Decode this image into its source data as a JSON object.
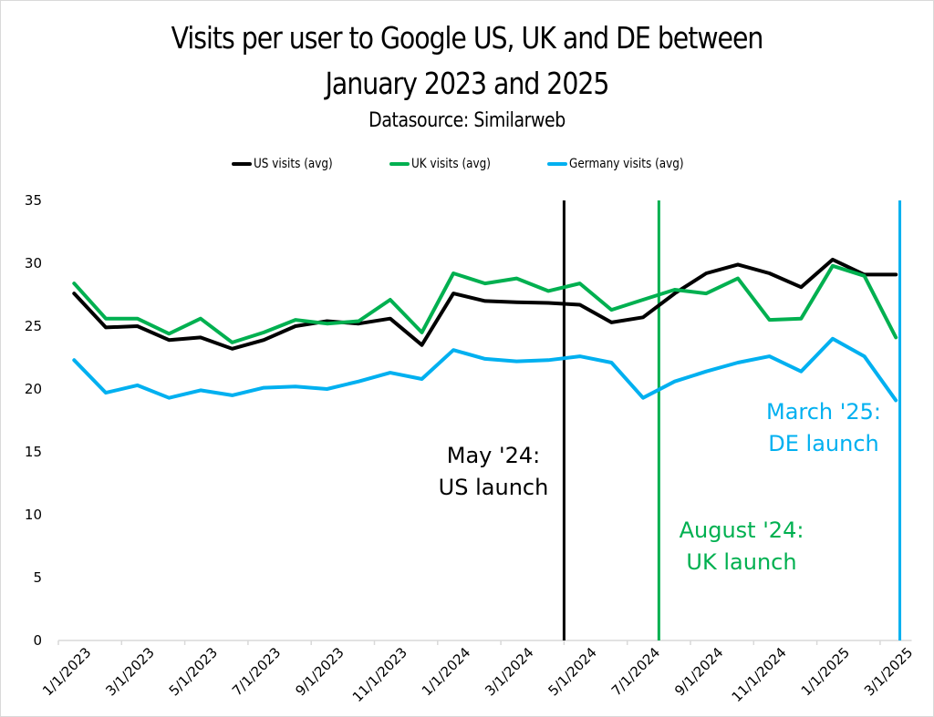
{
  "chart_data": {
    "type": "line",
    "title_lines": [
      "Visits per user to Google US, UK and DE between",
      "January 2023 and 2025"
    ],
    "subtitle": "Datasource: Similarweb",
    "xlabel": "",
    "ylabel": "",
    "ylim": [
      0,
      35
    ],
    "yticks": [
      0,
      5,
      10,
      15,
      20,
      25,
      30,
      35
    ],
    "grid": false,
    "legend_position": "top",
    "x": [
      "1/1/2023",
      "2/1/2023",
      "3/1/2023",
      "4/1/2023",
      "5/1/2023",
      "6/1/2023",
      "7/1/2023",
      "8/1/2023",
      "9/1/2023",
      "10/1/2023",
      "11/1/2023",
      "12/1/2023",
      "1/1/2024",
      "2/1/2024",
      "3/1/2024",
      "4/1/2024",
      "5/1/2024",
      "6/1/2024",
      "7/1/2024",
      "8/1/2024",
      "9/1/2024",
      "10/1/2024",
      "11/1/2024",
      "12/1/2024",
      "1/1/2025",
      "2/1/2025",
      "3/1/2025"
    ],
    "xtick_labels": [
      "1/1/2023",
      "3/1/2023",
      "5/1/2023",
      "7/1/2023",
      "9/1/2023",
      "11/1/2023",
      "1/1/2024",
      "3/1/2024",
      "5/1/2024",
      "7/1/2024",
      "9/1/2024",
      "11/1/2024",
      "1/1/2025",
      "3/1/2025"
    ],
    "series": [
      {
        "name": "US visits (avg)",
        "color": "#000000",
        "values": [
          27.6,
          24.9,
          25.0,
          23.9,
          24.1,
          23.2,
          23.9,
          25.0,
          25.4,
          25.2,
          25.6,
          23.5,
          27.6,
          27.0,
          26.9,
          26.85,
          26.7,
          25.3,
          25.7,
          27.6,
          29.2,
          29.9,
          29.2,
          28.1,
          30.3,
          29.1,
          29.1
        ]
      },
      {
        "name": "UK visits (avg)",
        "color": "#00b050",
        "values": [
          28.4,
          25.6,
          25.6,
          24.4,
          25.6,
          23.7,
          24.5,
          25.5,
          25.2,
          25.4,
          27.1,
          24.5,
          29.2,
          28.4,
          28.8,
          27.8,
          28.4,
          26.3,
          27.1,
          27.9,
          27.6,
          28.8,
          25.5,
          25.6,
          29.8,
          29.0,
          24.1
        ]
      },
      {
        "name": "Germany visits (avg)",
        "color": "#00b0f0",
        "values": [
          22.3,
          19.7,
          20.3,
          19.3,
          19.9,
          19.5,
          20.1,
          20.2,
          20.0,
          20.6,
          21.3,
          20.8,
          23.1,
          22.4,
          22.2,
          22.3,
          22.6,
          22.1,
          19.3,
          20.6,
          21.4,
          22.1,
          22.6,
          21.4,
          24.0,
          22.6,
          19.1
        ]
      }
    ],
    "annotations": [
      {
        "text_lines": [
          "May '24:",
          "US launch"
        ],
        "color": "#000000",
        "x": "5/1/2024",
        "line_position": "before"
      },
      {
        "text_lines": [
          "August '24:",
          "UK launch"
        ],
        "color": "#00b050",
        "x": "8/1/2024",
        "line_position": "before"
      },
      {
        "text_lines": [
          "March '25:",
          "DE launch"
        ],
        "color": "#00b0f0",
        "x": "3/1/2025",
        "line_position": "after"
      }
    ]
  }
}
